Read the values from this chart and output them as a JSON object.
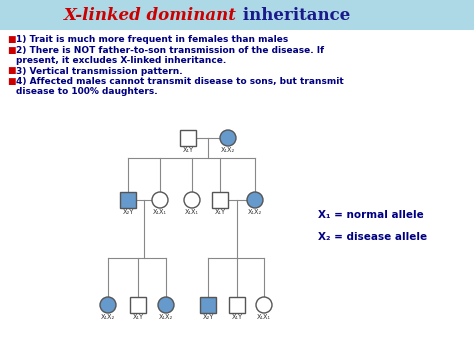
{
  "title_colored": "X-linked dominant",
  "title_rest": " inheritance",
  "title_color_main": "#cc0000",
  "title_color_rest": "#1a1a8c",
  "header_bg_top": "#add8e6",
  "header_bg_bot": "#c8e8f8",
  "bullet_color": "#cc0000",
  "text_color": "#000080",
  "legend_x1": "X₁ = normal allele",
  "legend_x2": "X₂ = disease allele",
  "legend_color": "#000080",
  "node_fill_affected": "#6699cc",
  "node_fill_normal": "#ffffff",
  "node_border": "#555555",
  "line_color": "#888888",
  "label_color": "#333333",
  "figsize": [
    4.74,
    3.58
  ],
  "dpi": 100
}
